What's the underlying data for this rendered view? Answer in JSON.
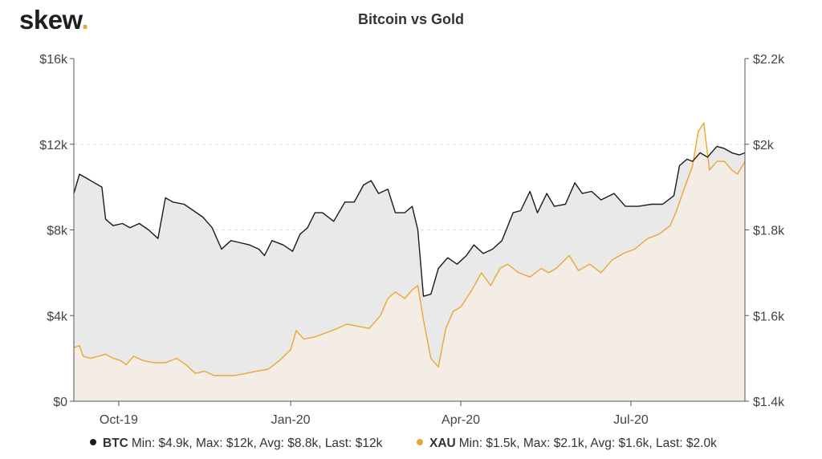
{
  "brand": {
    "name": "skew",
    "dot": "."
  },
  "chart_data": {
    "type": "line",
    "title": "Bitcoin vs Gold",
    "x_ticks": [
      "Oct-19",
      "Jan-20",
      "Apr-20",
      "Jul-20"
    ],
    "x_range": [
      "2019-09-07",
      "2020-08-31"
    ],
    "x_tick_dates": [
      "2019-10-01",
      "2020-01-01",
      "2020-04-01",
      "2020-07-01"
    ],
    "y_left": {
      "ticks": [
        "$0",
        "$4k",
        "$8k",
        "$12k",
        "$16k"
      ],
      "range": [
        0,
        16000
      ]
    },
    "y_right": {
      "ticks": [
        "$1.4k",
        "$1.6k",
        "$1.8k",
        "$2k",
        "$2.2k"
      ],
      "range": [
        1400,
        2200
      ]
    },
    "grid": true,
    "legend_position": "bottom",
    "series": [
      {
        "name": "BTC",
        "axis": "left",
        "color": "#1a1a1a",
        "fill": "#e9e9e9",
        "stats": "Min: $4.9k, Max: $12k, Avg: $8.8k, Last: $12k",
        "points": [
          [
            "2019-09-07",
            9700
          ],
          [
            "2019-09-10",
            10600
          ],
          [
            "2019-09-14",
            10400
          ],
          [
            "2019-09-18",
            10200
          ],
          [
            "2019-09-22",
            10000
          ],
          [
            "2019-09-24",
            8500
          ],
          [
            "2019-09-28",
            8200
          ],
          [
            "2019-10-03",
            8300
          ],
          [
            "2019-10-07",
            8100
          ],
          [
            "2019-10-12",
            8300
          ],
          [
            "2019-10-17",
            8000
          ],
          [
            "2019-10-22",
            7600
          ],
          [
            "2019-10-26",
            9500
          ],
          [
            "2019-10-30",
            9300
          ],
          [
            "2019-11-05",
            9200
          ],
          [
            "2019-11-10",
            8900
          ],
          [
            "2019-11-15",
            8600
          ],
          [
            "2019-11-20",
            8100
          ],
          [
            "2019-11-25",
            7100
          ],
          [
            "2019-11-30",
            7500
          ],
          [
            "2019-12-05",
            7400
          ],
          [
            "2019-12-10",
            7300
          ],
          [
            "2019-12-15",
            7100
          ],
          [
            "2019-12-18",
            6800
          ],
          [
            "2019-12-22",
            7500
          ],
          [
            "2019-12-28",
            7300
          ],
          [
            "2020-01-02",
            7000
          ],
          [
            "2020-01-06",
            7800
          ],
          [
            "2020-01-10",
            8100
          ],
          [
            "2020-01-14",
            8800
          ],
          [
            "2020-01-18",
            8800
          ],
          [
            "2020-01-24",
            8400
          ],
          [
            "2020-01-30",
            9300
          ],
          [
            "2020-02-04",
            9300
          ],
          [
            "2020-02-09",
            10100
          ],
          [
            "2020-02-13",
            10300
          ],
          [
            "2020-02-17",
            9700
          ],
          [
            "2020-02-22",
            9900
          ],
          [
            "2020-02-26",
            8800
          ],
          [
            "2020-03-02",
            8800
          ],
          [
            "2020-03-06",
            9100
          ],
          [
            "2020-03-09",
            8000
          ],
          [
            "2020-03-12",
            4900
          ],
          [
            "2020-03-16",
            5000
          ],
          [
            "2020-03-20",
            6200
          ],
          [
            "2020-03-25",
            6700
          ],
          [
            "2020-03-30",
            6400
          ],
          [
            "2020-04-04",
            6800
          ],
          [
            "2020-04-08",
            7300
          ],
          [
            "2020-04-13",
            6900
          ],
          [
            "2020-04-18",
            7100
          ],
          [
            "2020-04-23",
            7500
          ],
          [
            "2020-04-29",
            8800
          ],
          [
            "2020-05-03",
            8900
          ],
          [
            "2020-05-08",
            9800
          ],
          [
            "2020-05-12",
            8800
          ],
          [
            "2020-05-17",
            9700
          ],
          [
            "2020-05-21",
            9100
          ],
          [
            "2020-05-27",
            9200
          ],
          [
            "2020-06-01",
            10200
          ],
          [
            "2020-06-05",
            9700
          ],
          [
            "2020-06-10",
            9800
          ],
          [
            "2020-06-15",
            9400
          ],
          [
            "2020-06-22",
            9700
          ],
          [
            "2020-06-28",
            9100
          ],
          [
            "2020-07-05",
            9100
          ],
          [
            "2020-07-12",
            9200
          ],
          [
            "2020-07-18",
            9200
          ],
          [
            "2020-07-24",
            9600
          ],
          [
            "2020-07-27",
            11000
          ],
          [
            "2020-07-31",
            11300
          ],
          [
            "2020-08-03",
            11200
          ],
          [
            "2020-08-07",
            11600
          ],
          [
            "2020-08-11",
            11400
          ],
          [
            "2020-08-16",
            11900
          ],
          [
            "2020-08-20",
            11800
          ],
          [
            "2020-08-24",
            11600
          ],
          [
            "2020-08-28",
            11500
          ],
          [
            "2020-08-31",
            11600
          ]
        ]
      },
      {
        "name": "XAU",
        "axis": "right",
        "color": "#e8a735",
        "fill": "#f6ede3",
        "stats": "Min: $1.5k, Max: $2.1k, Avg: $1.6k, Last: $2.0k",
        "points": [
          [
            "2019-09-07",
            1525
          ],
          [
            "2019-09-10",
            1530
          ],
          [
            "2019-09-12",
            1505
          ],
          [
            "2019-09-16",
            1500
          ],
          [
            "2019-09-20",
            1505
          ],
          [
            "2019-09-24",
            1510
          ],
          [
            "2019-09-28",
            1500
          ],
          [
            "2019-10-02",
            1495
          ],
          [
            "2019-10-05",
            1485
          ],
          [
            "2019-10-09",
            1505
          ],
          [
            "2019-10-14",
            1495
          ],
          [
            "2019-10-20",
            1490
          ],
          [
            "2019-10-26",
            1490
          ],
          [
            "2019-11-01",
            1500
          ],
          [
            "2019-11-06",
            1485
          ],
          [
            "2019-11-11",
            1465
          ],
          [
            "2019-11-16",
            1470
          ],
          [
            "2019-11-21",
            1460
          ],
          [
            "2019-11-26",
            1460
          ],
          [
            "2019-12-02",
            1460
          ],
          [
            "2019-12-08",
            1465
          ],
          [
            "2019-12-14",
            1470
          ],
          [
            "2019-12-20",
            1475
          ],
          [
            "2019-12-26",
            1495
          ],
          [
            "2020-01-01",
            1520
          ],
          [
            "2020-01-04",
            1565
          ],
          [
            "2020-01-08",
            1545
          ],
          [
            "2020-01-14",
            1550
          ],
          [
            "2020-01-20",
            1560
          ],
          [
            "2020-01-26",
            1570
          ],
          [
            "2020-01-31",
            1580
          ],
          [
            "2020-02-06",
            1575
          ],
          [
            "2020-02-12",
            1570
          ],
          [
            "2020-02-18",
            1600
          ],
          [
            "2020-02-22",
            1640
          ],
          [
            "2020-02-26",
            1655
          ],
          [
            "2020-03-02",
            1640
          ],
          [
            "2020-03-06",
            1660
          ],
          [
            "2020-03-09",
            1670
          ],
          [
            "2020-03-12",
            1590
          ],
          [
            "2020-03-16",
            1500
          ],
          [
            "2020-03-20",
            1480
          ],
          [
            "2020-03-24",
            1570
          ],
          [
            "2020-03-28",
            1610
          ],
          [
            "2020-04-01",
            1620
          ],
          [
            "2020-04-07",
            1660
          ],
          [
            "2020-04-12",
            1700
          ],
          [
            "2020-04-17",
            1670
          ],
          [
            "2020-04-22",
            1710
          ],
          [
            "2020-04-26",
            1720
          ],
          [
            "2020-05-02",
            1700
          ],
          [
            "2020-05-08",
            1690
          ],
          [
            "2020-05-14",
            1710
          ],
          [
            "2020-05-18",
            1700
          ],
          [
            "2020-05-22",
            1710
          ],
          [
            "2020-05-29",
            1740
          ],
          [
            "2020-06-03",
            1705
          ],
          [
            "2020-06-09",
            1720
          ],
          [
            "2020-06-15",
            1700
          ],
          [
            "2020-06-21",
            1730
          ],
          [
            "2020-06-27",
            1745
          ],
          [
            "2020-07-03",
            1755
          ],
          [
            "2020-07-10",
            1780
          ],
          [
            "2020-07-16",
            1790
          ],
          [
            "2020-07-22",
            1810
          ],
          [
            "2020-07-25",
            1840
          ],
          [
            "2020-07-29",
            1890
          ],
          [
            "2020-08-03",
            1950
          ],
          [
            "2020-08-06",
            2030
          ],
          [
            "2020-08-09",
            2050
          ],
          [
            "2020-08-12",
            1940
          ],
          [
            "2020-08-16",
            1960
          ],
          [
            "2020-08-20",
            1960
          ],
          [
            "2020-08-24",
            1940
          ],
          [
            "2020-08-27",
            1930
          ],
          [
            "2020-08-31",
            1960
          ]
        ]
      }
    ]
  }
}
